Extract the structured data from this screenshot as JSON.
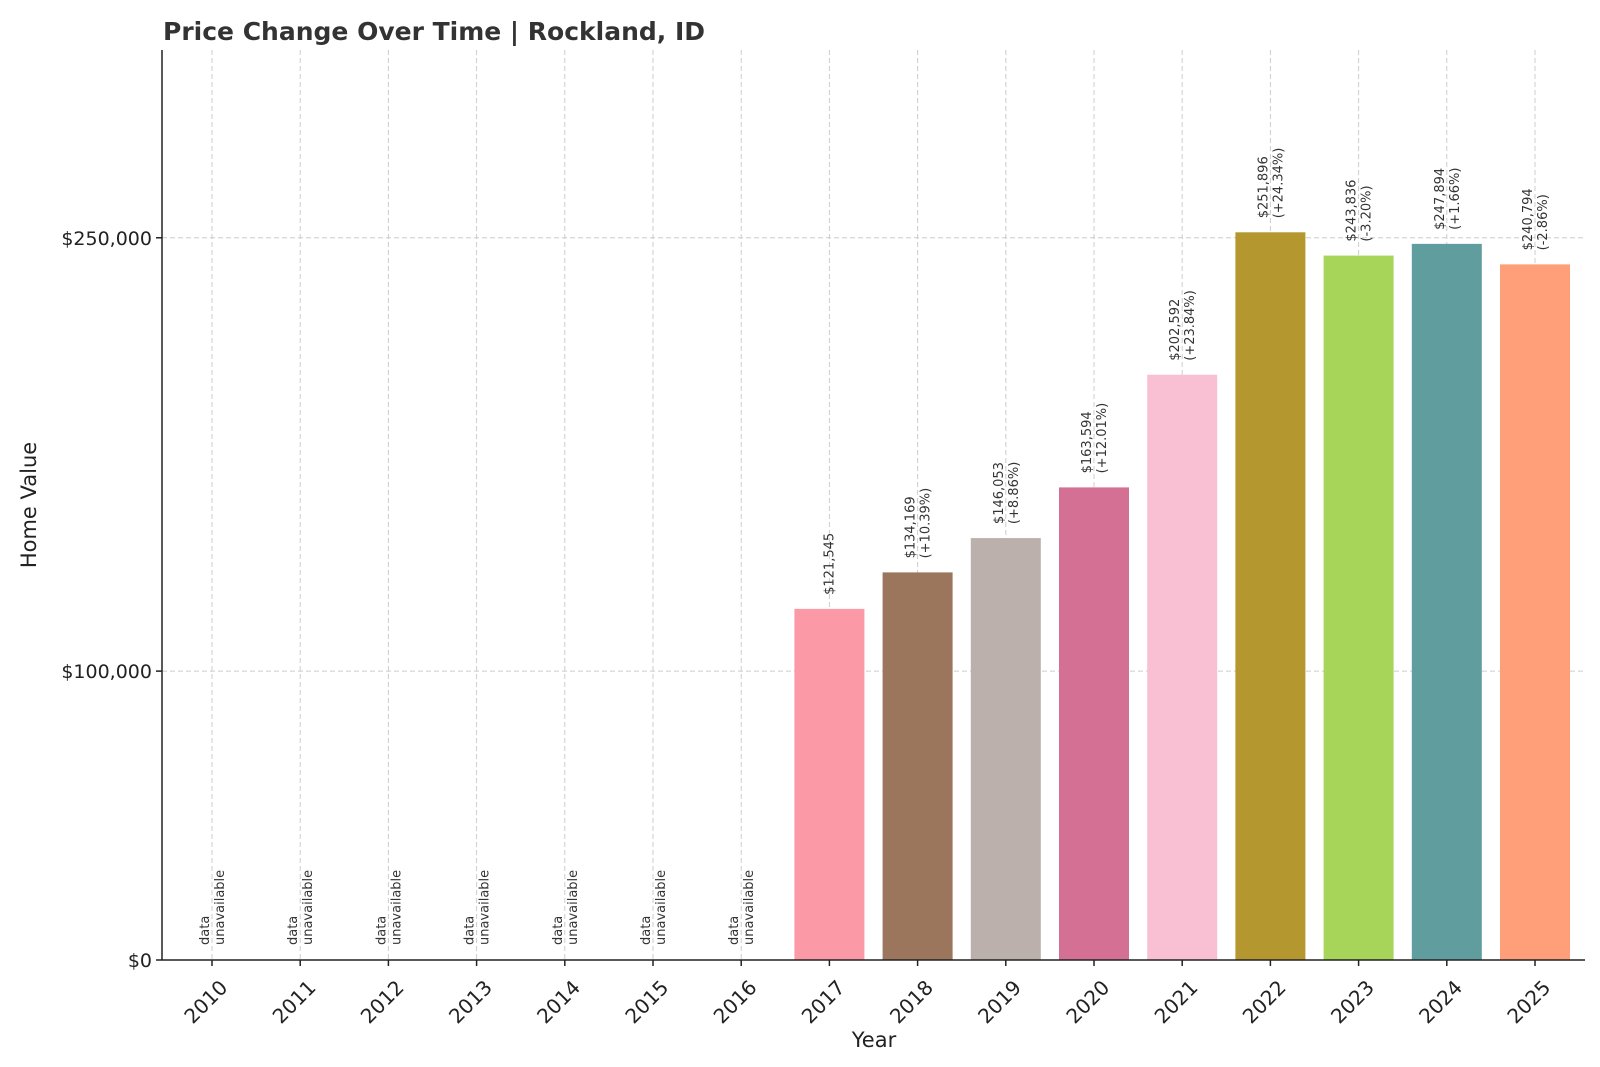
{
  "chart_data": {
    "type": "bar",
    "title": "Price Change Over Time | Rockland, ID",
    "xlabel": "Year",
    "ylabel": "Home Value",
    "ylim": [
      0,
      315000
    ],
    "yticks": [
      0,
      100000,
      250000
    ],
    "ytick_labels": [
      "$0",
      "$100,000",
      "$250,000"
    ],
    "grid": true,
    "categories": [
      "2010",
      "2011",
      "2012",
      "2013",
      "2014",
      "2015",
      "2016",
      "2017",
      "2018",
      "2019",
      "2020",
      "2021",
      "2022",
      "2023",
      "2024",
      "2025"
    ],
    "values": [
      null,
      null,
      null,
      null,
      null,
      null,
      null,
      121545,
      134169,
      146053,
      163594,
      202592,
      251896,
      243836,
      247894,
      240794
    ],
    "value_labels": [
      "",
      "",
      "",
      "",
      "",
      "",
      "",
      "$121,545",
      "$134,169",
      "$146,053",
      "$163,594",
      "$202,592",
      "$251,896",
      "$243,836",
      "$247,894",
      "$240,794"
    ],
    "change_labels": [
      "",
      "",
      "",
      "",
      "",
      "",
      "",
      "",
      "(+10.39%)",
      "(+8.86%)",
      "(+12.01%)",
      "(+23.84%)",
      "(+24.34%)",
      "(-3.20%)",
      "(+1.66%)",
      "(-2.86%)"
    ],
    "unavailable_label": [
      "data",
      "unavailable"
    ],
    "colors": [
      "#fb9aa6",
      "#fb9aa6",
      "#fb9aa6",
      "#fb9aa6",
      "#fb9aa6",
      "#fb9aa6",
      "#fb9aa6",
      "#fb9aa6",
      "#9b755c",
      "#bbb0ab",
      "#d47093",
      "#f9bfd3",
      "#b5972f",
      "#a6d55a",
      "#5f9d9e",
      "#fe9f79"
    ]
  }
}
